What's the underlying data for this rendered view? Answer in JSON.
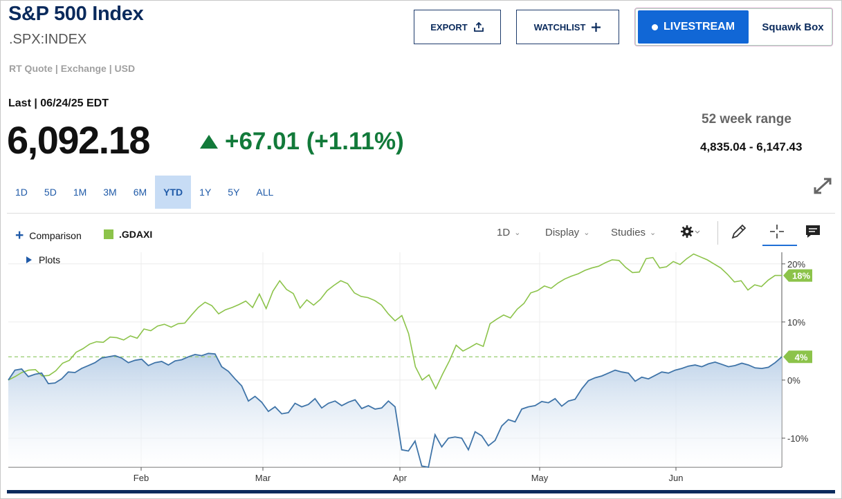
{
  "header": {
    "title": "S&P 500 Index",
    "symbol": ".SPX:INDEX",
    "quote_meta": "RT Quote | Exchange | USD"
  },
  "actions": {
    "export_label": "EXPORT",
    "watchlist_label": "WATCHLIST",
    "livestream_label": "LIVESTREAM",
    "squawk_label": "Squawk Box"
  },
  "quote": {
    "last_label": "Last | 06/24/25 EDT",
    "last_value": "6,092.18",
    "change": "+67.01 (+1.11%)",
    "range_label": "52 week range",
    "range_value": "4,835.04 - 6,147.43"
  },
  "periods": [
    {
      "label": "1D",
      "active": false
    },
    {
      "label": "5D",
      "active": false
    },
    {
      "label": "1M",
      "active": false
    },
    {
      "label": "3M",
      "active": false
    },
    {
      "label": "6M",
      "active": false
    },
    {
      "label": "YTD",
      "active": true
    },
    {
      "label": "1Y",
      "active": false
    },
    {
      "label": "5Y",
      "active": false
    },
    {
      "label": "ALL",
      "active": false
    }
  ],
  "toolbar": {
    "comparison_label": "Comparison",
    "legend_label": ".GDAXI",
    "plots_label": "Plots",
    "interval_label": "1D",
    "display_label": "Display",
    "studies_label": "Studies"
  },
  "colors": {
    "spx_line": "#3f74a8",
    "gdaxi_line": "#8cc34a",
    "accent": "#1167d6",
    "positive": "#127a3a"
  },
  "icons": [
    "upload-icon",
    "plus-icon",
    "expand-icon",
    "gear-icon",
    "pencil-icon",
    "crosshair-icon",
    "comment-icon"
  ],
  "chart_data": {
    "type": "line",
    "x_tick_labels": [
      "Feb",
      "Mar",
      "Apr",
      "May",
      "Jun"
    ],
    "y_tick_labels": [
      "20%",
      "10%",
      "0%",
      "-10%"
    ],
    "ylim": [
      -15,
      22
    ],
    "grid": true,
    "series": [
      {
        "name": ".SPX",
        "end_label": "4%",
        "values": [
          0.0,
          1.7,
          1.9,
          0.6,
          1.0,
          1.2,
          -0.6,
          -0.5,
          0.2,
          1.4,
          1.3,
          2.0,
          2.5,
          3.0,
          3.8,
          4.0,
          4.2,
          3.8,
          3.0,
          3.4,
          3.6,
          2.5,
          3.0,
          3.2,
          2.6,
          3.3,
          3.5,
          4.0,
          4.4,
          4.2,
          4.6,
          4.5,
          2.3,
          1.5,
          0.2,
          -1.0,
          -3.6,
          -2.8,
          -3.8,
          -5.4,
          -4.6,
          -5.8,
          -5.6,
          -4.0,
          -4.6,
          -4.2,
          -3.2,
          -4.8,
          -4.0,
          -3.6,
          -4.4,
          -3.8,
          -3.4,
          -4.9,
          -4.4,
          -5.0,
          -4.8,
          -3.6,
          -4.6,
          -12.0,
          -12.2,
          -10.5,
          -14.8,
          -15.0,
          -9.4,
          -11.5,
          -10.0,
          -9.8,
          -10.0,
          -12.0,
          -8.9,
          -9.6,
          -11.3,
          -10.4,
          -7.9,
          -6.8,
          -7.2,
          -5.0,
          -4.6,
          -4.4,
          -3.7,
          -3.9,
          -3.2,
          -4.5,
          -3.6,
          -3.3,
          -1.5,
          -0.1,
          0.4,
          0.7,
          1.2,
          1.7,
          1.4,
          1.2,
          -0.2,
          0.5,
          0.2,
          0.8,
          1.4,
          1.2,
          1.7,
          2.0,
          2.4,
          2.6,
          2.3,
          2.8,
          3.1,
          2.7,
          2.3,
          2.5,
          2.9,
          2.6,
          2.1,
          2.0,
          2.2,
          3.0,
          4.0
        ]
      },
      {
        "name": ".GDAXI",
        "end_label": "18%",
        "values": [
          0.0,
          0.6,
          1.3,
          1.7,
          1.8,
          0.7,
          0.8,
          1.6,
          2.9,
          3.4,
          4.8,
          5.4,
          6.2,
          6.6,
          6.5,
          7.4,
          7.3,
          6.9,
          7.6,
          7.2,
          8.8,
          8.5,
          9.3,
          9.6,
          9.1,
          9.7,
          9.8,
          11.2,
          12.5,
          13.4,
          12.8,
          11.4,
          12.1,
          12.5,
          13.0,
          13.6,
          12.5,
          14.8,
          12.3,
          15.3,
          17.1,
          15.6,
          14.9,
          12.4,
          13.8,
          12.9,
          13.9,
          15.4,
          16.3,
          17.1,
          16.6,
          15.0,
          14.4,
          14.2,
          13.7,
          12.9,
          11.4,
          10.2,
          11.1,
          8.0,
          2.3,
          0.0,
          0.9,
          -1.5,
          1.0,
          3.3,
          6.0,
          5.0,
          5.6,
          6.3,
          5.8,
          9.7,
          10.5,
          11.2,
          10.7,
          12.2,
          13.2,
          15.0,
          15.4,
          16.2,
          15.8,
          16.7,
          17.4,
          17.9,
          18.3,
          18.9,
          19.3,
          19.6,
          20.2,
          20.7,
          20.6,
          19.4,
          18.5,
          18.6,
          20.9,
          21.1,
          19.3,
          19.5,
          20.4,
          19.9,
          20.9,
          21.7,
          21.2,
          20.7,
          20.0,
          19.3,
          18.2,
          16.9,
          17.1,
          15.5,
          16.4,
          16.1,
          17.2,
          18.0,
          18.0
        ]
      }
    ],
    "reference_level": 4
  }
}
